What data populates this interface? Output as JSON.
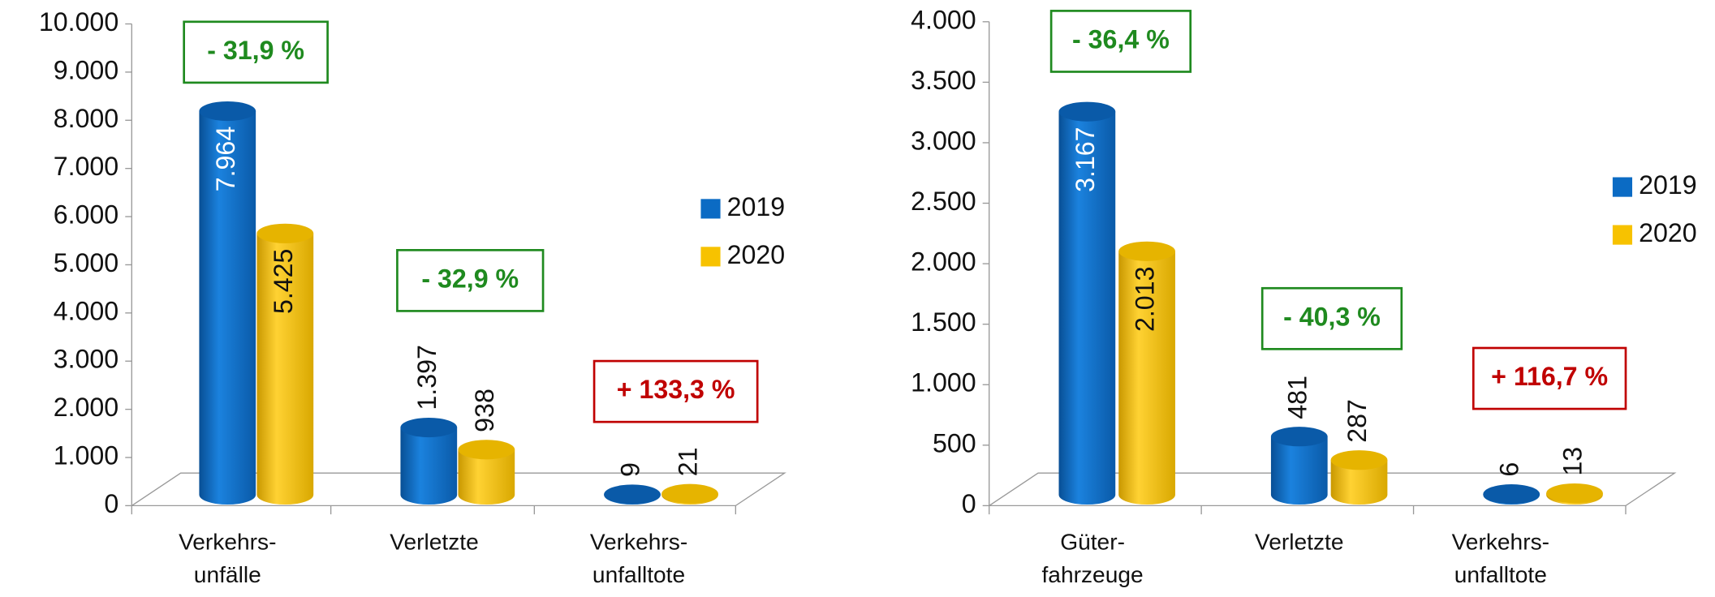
{
  "chart_data": [
    {
      "type": "bar3d",
      "categories": [
        [
          "Verkehrs-",
          "unfälle"
        ],
        [
          "Verletzte"
        ],
        [
          "Verkehrs-",
          "unfalltote"
        ]
      ],
      "series": [
        {
          "name": "2019",
          "color": "#0b6bc4",
          "values": [
            7964,
            1397,
            9
          ],
          "value_labels": [
            "7.964",
            "1.397",
            "9"
          ]
        },
        {
          "name": "2020",
          "color": "#f7c200",
          "values": [
            5425,
            938,
            21
          ],
          "value_labels": [
            "5.425",
            "938",
            "21"
          ]
        }
      ],
      "ylim": [
        0,
        10000
      ],
      "yticks": [
        0,
        {
          "value": 1000,
          "label": "1.000"
        },
        {
          "value": 2000,
          "label": "2.000"
        },
        {
          "value": 3000,
          "label": "3.000"
        },
        {
          "value": 4000,
          "label": "4.000"
        },
        {
          "value": 5000,
          "label": "5.000"
        },
        {
          "value": 6000,
          "label": "6.000"
        },
        {
          "value": 7000,
          "label": "7.000"
        },
        {
          "value": 8000,
          "label": "8.000"
        },
        {
          "value": 9000,
          "label": "9.000"
        },
        {
          "value": 10000,
          "label": "10.000"
        }
      ],
      "annotations": [
        {
          "text": "- 31,9 %",
          "color": "#1f8a1f"
        },
        {
          "text": "- 32,9 %",
          "color": "#1f8a1f"
        },
        {
          "text": "+ 133,3 %",
          "color": "#c00000"
        }
      ],
      "legend": "right"
    },
    {
      "type": "bar3d",
      "categories": [
        [
          "Güter-",
          "fahrzeuge"
        ],
        [
          "Verletzte"
        ],
        [
          "Verkehrs-",
          "unfalltote"
        ]
      ],
      "series": [
        {
          "name": "2019",
          "color": "#0b6bc4",
          "values": [
            3167,
            481,
            6
          ],
          "value_labels": [
            "3.167",
            "481",
            "6"
          ]
        },
        {
          "name": "2020",
          "color": "#f7c200",
          "values": [
            2013,
            287,
            13
          ],
          "value_labels": [
            "2.013",
            "287",
            "13"
          ]
        }
      ],
      "ylim": [
        0,
        4000
      ],
      "yticks": [
        0,
        500,
        {
          "value": 1000,
          "label": "1.000"
        },
        {
          "value": 1500,
          "label": "1.500"
        },
        {
          "value": 2000,
          "label": "2.000"
        },
        {
          "value": 2500,
          "label": "2.500"
        },
        {
          "value": 3000,
          "label": "3.000"
        },
        {
          "value": 3500,
          "label": "3.500"
        },
        {
          "value": 4000,
          "label": "4.000"
        }
      ],
      "annotations": [
        {
          "text": "- 36,4 %",
          "color": "#1f8a1f"
        },
        {
          "text": "- 40,3 %",
          "color": "#1f8a1f"
        },
        {
          "text": "+ 116,7 %",
          "color": "#c00000"
        }
      ],
      "legend": "right"
    }
  ]
}
